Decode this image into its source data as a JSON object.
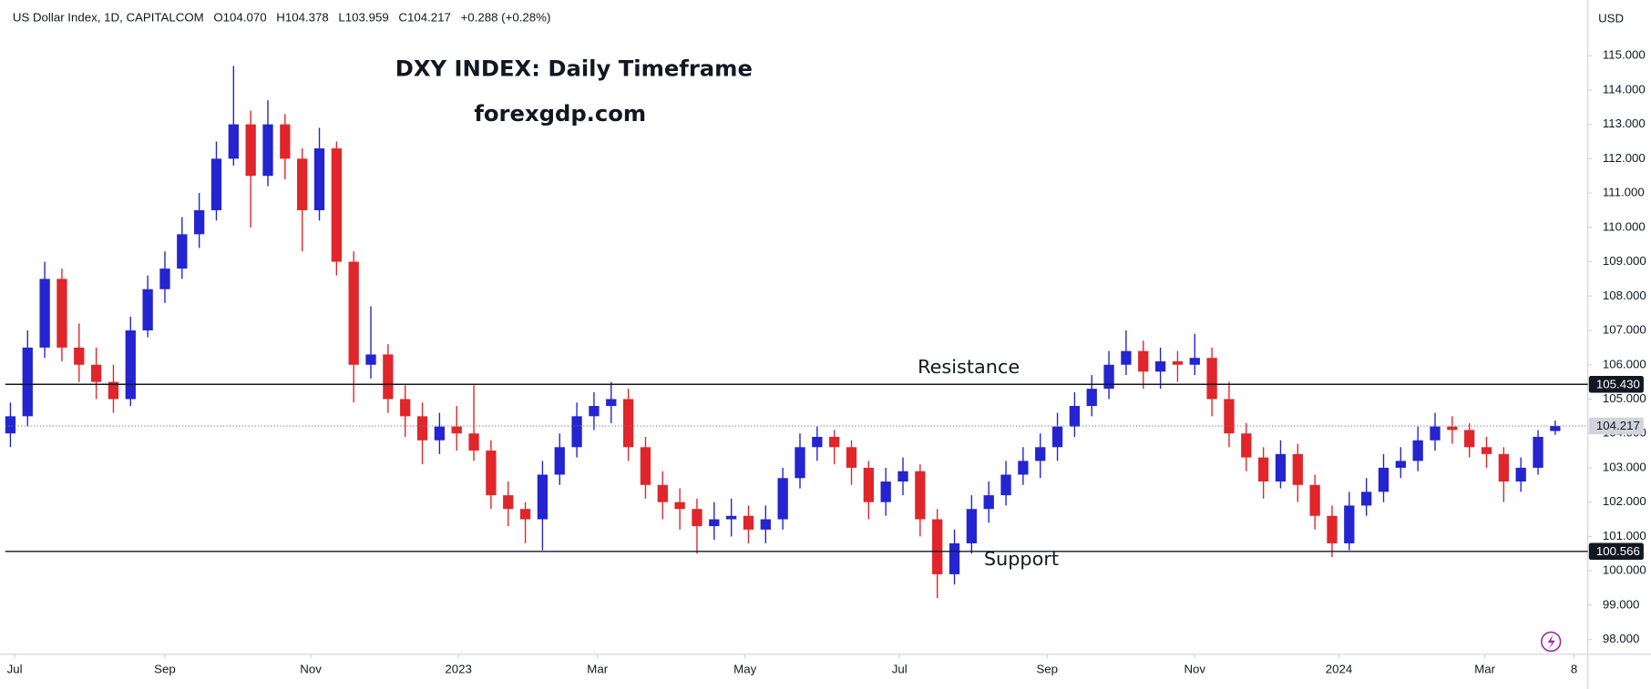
{
  "chart_data": {
    "type": "candlestick",
    "symbol": "US Dollar Index, 1D, CAPITALCOM",
    "ohlc": [
      "O104.070",
      "H104.378",
      "L103.959",
      "C104.217"
    ],
    "change": "+0.288 (+0.28%)",
    "title": "DXY INDEX: Daily Timeframe",
    "subtitle": "forexgdp.com",
    "currency": "USD",
    "up_color": "#2424d0",
    "down_color": "#e0262a",
    "x": [
      0,
      1,
      2,
      3,
      4,
      5,
      6,
      7,
      8,
      9,
      10,
      11,
      12,
      13,
      14,
      15,
      16,
      17,
      18,
      19,
      20,
      21,
      22,
      23,
      24,
      25,
      26,
      27,
      28,
      29,
      30,
      31,
      32,
      33,
      34,
      35,
      36,
      37,
      38,
      39,
      40,
      41,
      42,
      43,
      44,
      45,
      46,
      47,
      48,
      49,
      50,
      51,
      52,
      53,
      54,
      55,
      56,
      57,
      58,
      59,
      60,
      61,
      62,
      63,
      64,
      65,
      66,
      67,
      68,
      69,
      70,
      71,
      72,
      73,
      74,
      75,
      76,
      77,
      78,
      79,
      80,
      81,
      82,
      83,
      84,
      85,
      86,
      87,
      88,
      89,
      90
    ],
    "open": [
      104.0,
      104.5,
      106.5,
      108.5,
      106.5,
      106.0,
      105.5,
      105.0,
      107.0,
      108.2,
      108.8,
      109.8,
      110.5,
      112.0,
      113.0,
      111.5,
      113.0,
      112.0,
      110.5,
      112.3,
      109.0,
      106.0,
      106.3,
      105.0,
      104.5,
      103.8,
      104.2,
      104.0,
      103.5,
      102.2,
      101.8,
      101.5,
      102.8,
      103.6,
      104.5,
      104.8,
      105.0,
      103.6,
      102.5,
      102.0,
      101.8,
      101.3,
      101.5,
      101.6,
      101.2,
      101.5,
      102.7,
      103.6,
      103.9,
      103.6,
      103.0,
      102.0,
      102.6,
      102.9,
      101.5,
      99.9,
      100.8,
      101.8,
      102.2,
      102.8,
      103.2,
      103.6,
      104.2,
      104.8,
      105.3,
      106.0,
      106.4,
      105.8,
      106.1,
      106.0,
      106.2,
      105.0,
      104.0,
      103.3,
      102.6,
      103.4,
      102.5,
      101.6,
      100.8,
      101.9,
      102.3,
      103.0,
      103.2,
      103.8,
      104.2,
      104.1,
      103.6,
      103.4,
      102.6,
      103.0,
      104.07
    ],
    "high": [
      104.9,
      107.0,
      109.0,
      108.8,
      107.2,
      106.5,
      106.0,
      107.4,
      108.6,
      109.3,
      110.3,
      111.0,
      112.5,
      114.7,
      113.4,
      113.7,
      113.3,
      112.3,
      112.9,
      112.5,
      109.3,
      107.7,
      106.6,
      105.4,
      104.9,
      104.6,
      104.8,
      105.4,
      103.8,
      102.6,
      102.0,
      103.2,
      104.0,
      104.9,
      105.2,
      105.5,
      105.3,
      103.9,
      102.9,
      102.4,
      102.1,
      102.0,
      102.1,
      101.9,
      101.9,
      103.0,
      104.0,
      104.2,
      104.1,
      103.8,
      103.2,
      103.0,
      103.3,
      103.1,
      101.8,
      101.2,
      102.2,
      102.6,
      103.2,
      103.6,
      104.0,
      104.6,
      105.2,
      105.7,
      106.4,
      107.0,
      106.7,
      106.5,
      106.4,
      106.9,
      106.5,
      105.5,
      104.3,
      103.6,
      103.8,
      103.7,
      102.8,
      101.9,
      102.3,
      102.7,
      103.4,
      103.6,
      104.2,
      104.6,
      104.5,
      104.3,
      103.9,
      103.6,
      103.3,
      104.1,
      104.378
    ],
    "low": [
      103.6,
      104.2,
      106.2,
      106.1,
      105.5,
      105.0,
      104.6,
      104.8,
      106.8,
      107.8,
      108.5,
      109.4,
      110.2,
      111.8,
      110.0,
      111.2,
      111.4,
      109.3,
      110.2,
      108.6,
      104.9,
      105.6,
      104.6,
      103.9,
      103.1,
      103.4,
      103.5,
      103.2,
      101.8,
      101.3,
      100.8,
      100.6,
      102.5,
      103.3,
      104.1,
      104.3,
      103.2,
      102.1,
      101.5,
      101.2,
      100.5,
      100.9,
      101.0,
      100.8,
      100.8,
      101.2,
      102.4,
      103.2,
      103.1,
      102.5,
      101.5,
      101.6,
      102.2,
      101.0,
      99.2,
      99.6,
      100.5,
      101.4,
      101.9,
      102.5,
      102.7,
      103.2,
      103.9,
      104.5,
      105.0,
      105.7,
      105.3,
      105.3,
      105.5,
      105.7,
      104.5,
      103.6,
      102.9,
      102.1,
      102.4,
      102.0,
      101.2,
      100.4,
      100.6,
      101.6,
      102.0,
      102.7,
      102.9,
      103.5,
      103.7,
      103.3,
      103.0,
      102.0,
      102.3,
      102.8,
      103.959
    ],
    "close": [
      104.5,
      106.5,
      108.5,
      106.5,
      106.0,
      105.5,
      105.0,
      107.0,
      108.2,
      108.8,
      109.8,
      110.5,
      112.0,
      113.0,
      111.5,
      113.0,
      112.0,
      110.5,
      112.3,
      109.0,
      106.0,
      106.3,
      105.0,
      104.5,
      103.8,
      104.2,
      104.0,
      103.5,
      102.2,
      101.8,
      101.5,
      102.8,
      103.6,
      104.5,
      104.8,
      105.0,
      103.6,
      102.5,
      102.0,
      101.8,
      101.3,
      101.5,
      101.6,
      101.2,
      101.5,
      102.7,
      103.6,
      103.9,
      103.6,
      103.0,
      102.0,
      102.6,
      102.9,
      101.5,
      99.9,
      100.8,
      101.8,
      102.2,
      102.8,
      103.2,
      103.6,
      104.2,
      104.8,
      105.3,
      106.0,
      106.4,
      105.8,
      106.1,
      106.0,
      106.2,
      105.0,
      104.0,
      103.3,
      102.6,
      103.4,
      102.5,
      101.6,
      100.8,
      101.9,
      102.3,
      103.0,
      103.2,
      103.8,
      104.2,
      104.1,
      103.6,
      103.4,
      102.6,
      103.0,
      103.9,
      104.217
    ],
    "xlim": [
      -0.3,
      91.9
    ],
    "xticks": [
      {
        "value": 0.25,
        "label": "Jul"
      },
      {
        "value": 9.0,
        "label": "Sep"
      },
      {
        "value": 17.5,
        "label": "Nov"
      },
      {
        "value": 26.1,
        "label": "2023"
      },
      {
        "value": 34.2,
        "label": "Mar"
      },
      {
        "value": 42.8,
        "label": "May"
      },
      {
        "value": 51.8,
        "label": "Jul"
      },
      {
        "value": 60.4,
        "label": "Sep"
      },
      {
        "value": 69.0,
        "label": "Nov"
      },
      {
        "value": 77.4,
        "label": "2024"
      },
      {
        "value": 85.9,
        "label": "Mar"
      },
      {
        "value": 91.1,
        "label": "8"
      }
    ],
    "ylim": [
      97.57,
      116.62
    ],
    "yticks": [
      {
        "value": 98,
        "label": "98.000"
      },
      {
        "value": 99,
        "label": "99.000"
      },
      {
        "value": 100,
        "label": "100.000"
      },
      {
        "value": 101,
        "label": "101.000"
      },
      {
        "value": 102,
        "label": "102.000"
      },
      {
        "value": 103,
        "label": "103.000"
      },
      {
        "value": 104,
        "label": "104.000"
      },
      {
        "value": 105,
        "label": "105.000"
      },
      {
        "value": 106,
        "label": "106.000"
      },
      {
        "value": 107,
        "label": "107.000"
      },
      {
        "value": 108,
        "label": "108.000"
      },
      {
        "value": 109,
        "label": "109.000"
      },
      {
        "value": 110,
        "label": "110.000"
      },
      {
        "value": 111,
        "label": "111.000"
      },
      {
        "value": 112,
        "label": "112.000"
      },
      {
        "value": 113,
        "label": "113.000"
      },
      {
        "value": 114,
        "label": "114.000"
      },
      {
        "value": 115,
        "label": "115.000"
      }
    ],
    "grid": false,
    "levels": [
      {
        "name": "Resistance",
        "value": 105.43,
        "label": "105.430",
        "color": "#131722",
        "dashed": false
      },
      {
        "value": 104.217,
        "label": "104.217",
        "color": "#787b86",
        "dashed": true
      },
      {
        "name": "Support",
        "value": 100.566,
        "label": "100.566",
        "color": "#131722",
        "dashed": false
      }
    ]
  }
}
